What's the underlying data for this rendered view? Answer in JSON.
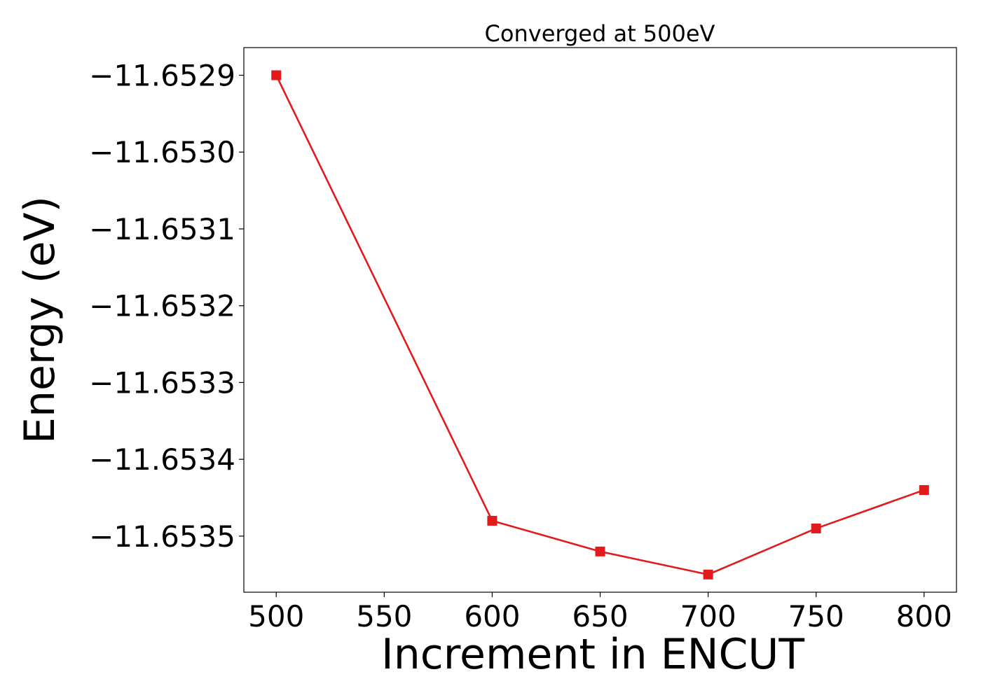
{
  "chart_data": {
    "type": "line",
    "title": "Converged at 500eV",
    "xlabel": "Increment in ENCUT",
    "ylabel": "Energy (eV)",
    "x": [
      500,
      600,
      650,
      700,
      750,
      800
    ],
    "series": [
      {
        "values": [
          -11.6529,
          -11.65348,
          -11.65352,
          -11.65355,
          -11.65349,
          -11.65344
        ],
        "color": "#e31a1c",
        "marker": "square"
      }
    ],
    "xlim": [
      485,
      815
    ],
    "ylim": [
      -11.653573,
      -11.652864
    ],
    "xticks": [
      500,
      550,
      600,
      650,
      700,
      750,
      800
    ],
    "xtick_labels": [
      "500",
      "550",
      "600",
      "650",
      "700",
      "750",
      "800"
    ],
    "yticks": [
      -11.6529,
      -11.653,
      -11.6531,
      -11.6532,
      -11.6533,
      -11.6534,
      -11.6535
    ],
    "ytick_labels": [
      "−11.6529",
      "−11.6530",
      "−11.6531",
      "−11.6532",
      "−11.6533",
      "−11.6534",
      "−11.6535"
    ],
    "grid": false,
    "legend": "none"
  }
}
